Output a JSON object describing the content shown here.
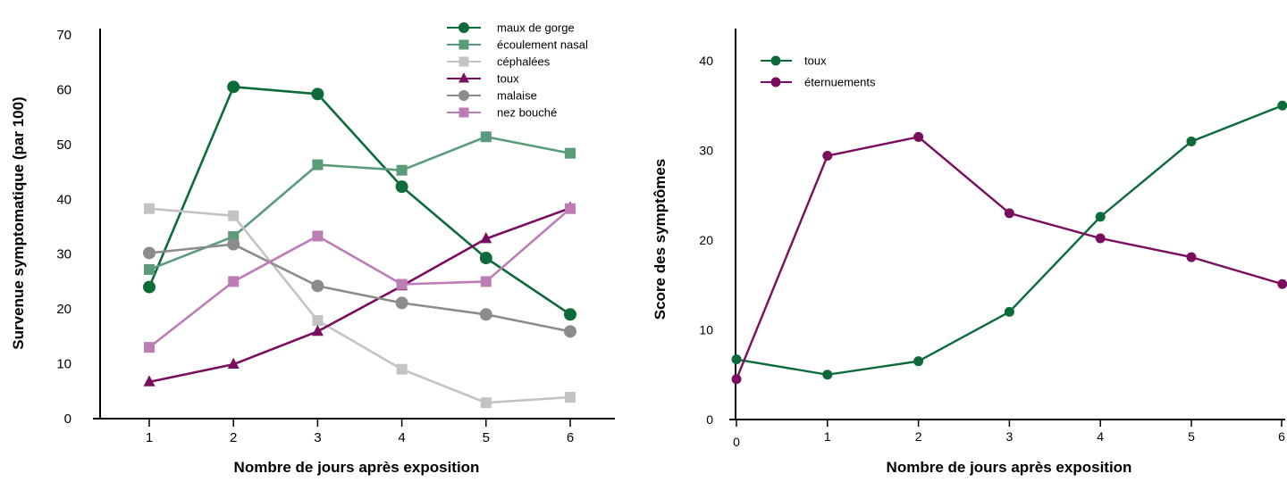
{
  "chart_data": [
    {
      "type": "line",
      "title": "",
      "xlabel": "Nombre de jours après exposition",
      "ylabel": "Survenue symptomatique (par 100)",
      "x": [
        1,
        2,
        3,
        4,
        5,
        6
      ],
      "xticks": [
        "1",
        "2",
        "3",
        "4",
        "5",
        "6"
      ],
      "ylim": [
        0,
        70
      ],
      "yticks": [
        "0",
        "10",
        "20",
        "30",
        "40",
        "50",
        "60",
        "70"
      ],
      "grid": false,
      "legend_position": "top-right",
      "series": [
        {
          "name": "maux de gorge",
          "marker": "circle",
          "color": "#0d6b3a",
          "values": [
            24,
            60.5,
            59.2,
            42.3,
            29.3,
            19
          ]
        },
        {
          "name": "écoulement nasal",
          "marker": "square",
          "color": "#5a9b7a",
          "values": [
            27.2,
            33.2,
            46.3,
            45.3,
            51.4,
            48.4
          ]
        },
        {
          "name": "céphalées",
          "marker": "square",
          "color": "#c3c3c3",
          "values": [
            38.3,
            37,
            17.9,
            9,
            2.9,
            3.9
          ]
        },
        {
          "name": "toux",
          "marker": "triangle",
          "color": "#7b0d5e",
          "values": [
            6.7,
            9.9,
            15.9,
            24.2,
            32.8,
            38.4
          ]
        },
        {
          "name": "malaise",
          "marker": "circle",
          "color": "#8c8c8c",
          "values": [
            30.2,
            31.8,
            24.2,
            21.1,
            19,
            15.9
          ]
        },
        {
          "name": "nez bouché",
          "marker": "square",
          "color": "#bc7db4",
          "values": [
            13,
            25,
            33.3,
            24.5,
            25,
            38.3
          ]
        }
      ]
    },
    {
      "type": "line",
      "title": "",
      "xlabel": "Nombre de jours après exposition",
      "ylabel": "Score des symptômes",
      "x": [
        0,
        1,
        2,
        3,
        4,
        5,
        6
      ],
      "xticks": [
        "0",
        "1",
        "2",
        "3",
        "4",
        "5",
        "6"
      ],
      "xlim": [
        0,
        6
      ],
      "ylim": [
        0,
        43
      ],
      "yticks": [
        "0",
        "10",
        "20",
        "30",
        "40"
      ],
      "grid": false,
      "legend_position": "top-left",
      "series": [
        {
          "name": "toux",
          "marker": "circle",
          "color": "#0d6b3a",
          "values": [
            6.7,
            5,
            6.5,
            12,
            22.6,
            31,
            35
          ]
        },
        {
          "name": "éternuements",
          "marker": "circle",
          "color": "#7b0d5e",
          "values": [
            4.5,
            29.4,
            31.5,
            23,
            20.2,
            18.1,
            15.1
          ]
        }
      ]
    }
  ]
}
